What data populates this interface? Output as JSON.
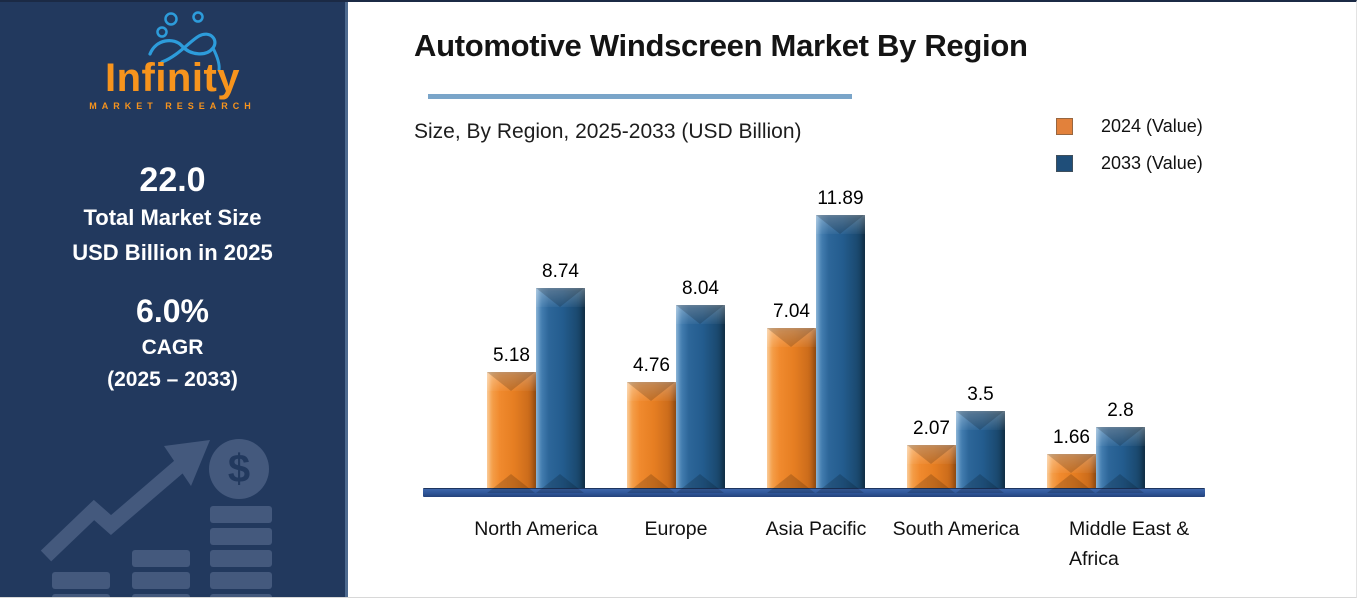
{
  "sidebar": {
    "logo": {
      "brand": "Infinity",
      "tagline": "MARKET RESEARCH"
    },
    "market_size": {
      "value": "22.0",
      "line1": "Total Market Size",
      "line2": "USD Billion in 2025"
    },
    "cagr": {
      "value": "6.0%",
      "line1": "CAGR",
      "line2": "(2025 – 2033)"
    }
  },
  "header": {
    "title": "Automotive Windscreen Market By Region",
    "subtitle": "Size, By Region, 2025-2033 (USD Billion)"
  },
  "chart_data": {
    "type": "bar",
    "title": "Automotive Windscreen Market By Region",
    "subtitle": "Size, By Region, 2025-2033 (USD Billion)",
    "categories": [
      "North America",
      "Europe",
      "Asia Pacific",
      "South America",
      "Middle East &\nAfrica"
    ],
    "series": [
      {
        "name": "2024 (Value)",
        "color": "#E2813B",
        "values": [
          5.18,
          4.76,
          7.04,
          2.07,
          1.66
        ],
        "value_labels": [
          "5.18",
          "4.76",
          "7.04",
          "2.07",
          "1.66"
        ]
      },
      {
        "name": "2033 (Value)",
        "color": "#1F4E79",
        "values": [
          8.74,
          8.04,
          11.89,
          3.5,
          2.8
        ],
        "value_labels": [
          "8.74",
          "8.04",
          "11.89",
          "3.5",
          "2.8"
        ]
      }
    ],
    "unit": "USD Billion",
    "value_axis_visible": false,
    "grid": false,
    "legend_position": "top-right",
    "data_labels": true
  },
  "colors": {
    "sidebar_bg": "#22395E",
    "logo_orange": "#F7941D",
    "logo_blue": "#2D9CDB",
    "bar_orange": "#E2813B",
    "bar_blue": "#1F4E79",
    "axis_bar": "#2E5597",
    "title_underline": "#7AA5C9"
  },
  "icons": {
    "logo_icon": "infinity-symbol-icon",
    "watermark": "growth-chart-dollar-icon"
  }
}
